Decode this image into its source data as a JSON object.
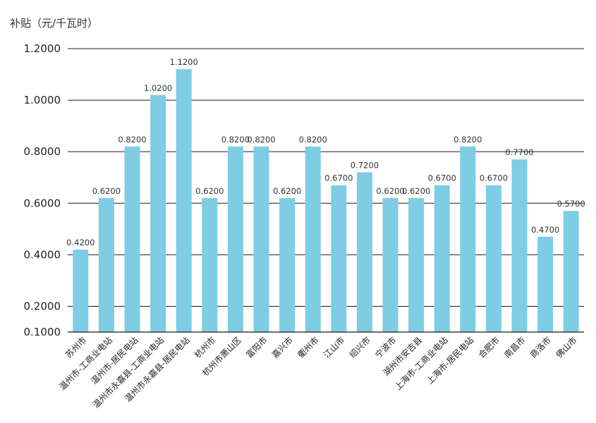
{
  "chart_data": {
    "type": "bar",
    "ylabel": "补贴（元/千瓦时）",
    "xlabel": "",
    "ylim": [
      0.1,
      1.2
    ],
    "yticks": [
      "0.1000",
      "0.2000",
      "0.4000",
      "0.6000",
      "0.8000",
      "1.0000",
      "1.2000"
    ],
    "grid": true,
    "bar_color": "#7ecde4",
    "categories": [
      "苏州市",
      "温州市-工商业电站",
      "温州市-居民电站",
      "温州市永嘉县-工商业电站",
      "温州市永嘉县-居民电站",
      "杭州市",
      "杭州市萧山区",
      "富阳市",
      "嘉兴市",
      "衢州市",
      "江山市",
      "绍兴市",
      "宁波市",
      "湖州市安吉县",
      "上海市-工商业电站",
      "上海市-居民电站",
      "合肥市",
      "南昌市",
      "商洛市",
      "佛山市"
    ],
    "values": [
      0.42,
      0.62,
      0.82,
      1.02,
      1.12,
      0.62,
      0.82,
      0.82,
      0.62,
      0.82,
      0.67,
      0.72,
      0.62,
      0.62,
      0.67,
      0.82,
      0.67,
      0.77,
      0.47,
      0.57
    ],
    "data_labels": [
      "0.4200",
      "0.6200",
      "0.8200",
      "1.0200",
      "1.1200",
      "0.6200",
      "0.8200",
      "0.8200",
      "0.6200",
      "0.8200",
      "0.6700",
      "0.7200",
      "0.6200",
      "0.6200",
      "0.6700",
      "0.8200",
      "0.6700",
      "0.7700",
      "0.4700",
      "0.5700"
    ]
  }
}
